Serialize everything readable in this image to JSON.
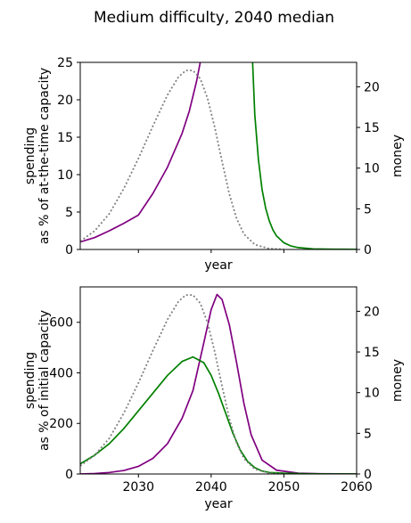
{
  "figure": {
    "suptitle": "Medium difficulty, 2040 median"
  },
  "colors": {
    "purple": "#800080",
    "green": "#008000",
    "dotted": "#808080",
    "axis": "#000000"
  },
  "chart_data": [
    {
      "type": "line",
      "panel": "top",
      "xlabel": "year",
      "ylabel_left": "spending\nas % of at-the-time capacity",
      "ylabel_right": "money",
      "xlim": [
        2022,
        2060
      ],
      "ylim_left": [
        0,
        25
      ],
      "ylim_right": [
        0,
        23
      ],
      "yticks_left": [
        0,
        5,
        10,
        15,
        20,
        25
      ],
      "yticks_right": [
        0,
        5,
        10,
        15,
        20
      ],
      "xticks": [
        2030,
        2040,
        2050,
        2060
      ],
      "xticklabels_shown": false,
      "series": [
        {
          "color": "purple",
          "style": "solid",
          "axis": "left",
          "x": [
            2022,
            2024,
            2026,
            2028,
            2030,
            2032,
            2034,
            2036,
            2037,
            2038,
            2038.5
          ],
          "y": [
            1.0,
            1.6,
            2.5,
            3.5,
            4.6,
            7.5,
            11.0,
            15.5,
            18.5,
            22.5,
            25
          ]
        },
        {
          "color": "green",
          "style": "solid",
          "axis": "left",
          "x": [
            2045.7,
            2046,
            2046.5,
            2047,
            2047.5,
            2048,
            2048.5,
            2049,
            2050,
            2051,
            2052,
            2054,
            2057,
            2060
          ],
          "y": [
            25,
            18,
            12,
            8,
            5.5,
            3.8,
            2.6,
            1.8,
            0.9,
            0.45,
            0.25,
            0.08,
            0.03,
            0.02
          ]
        },
        {
          "color": "dotted",
          "style": "dotted",
          "axis": "right",
          "x": [
            2022,
            2024,
            2026,
            2028,
            2030,
            2032,
            2034,
            2035.5,
            2036.5,
            2037.5,
            2038.5,
            2039.5,
            2040.5,
            2041.5,
            2042.5,
            2043.5,
            2044.5,
            2046,
            2048,
            2050
          ],
          "y": [
            1.0,
            2.3,
            4.4,
            7.5,
            11.2,
            15.2,
            19.0,
            21.2,
            22.0,
            22.0,
            21.0,
            18.6,
            15.0,
            10.8,
            6.8,
            3.8,
            1.9,
            0.6,
            0.1,
            0.0
          ]
        }
      ]
    },
    {
      "type": "line",
      "panel": "bottom",
      "xlabel": "year",
      "ylabel_left": "spending\nas % of initial capacity",
      "ylabel_right": "money",
      "xlim": [
        2022,
        2060
      ],
      "ylim_left": [
        0,
        740
      ],
      "ylim_right": [
        0,
        23
      ],
      "yticks_left": [
        0,
        200,
        400,
        600
      ],
      "yticks_right": [
        0,
        5,
        10,
        15,
        20
      ],
      "xticks": [
        2030,
        2040,
        2050,
        2060
      ],
      "xticklabels_shown": true,
      "series": [
        {
          "color": "purple",
          "style": "solid",
          "axis": "left",
          "x": [
            2022,
            2024,
            2026,
            2028,
            2030,
            2032,
            2034,
            2036,
            2037.5,
            2039,
            2040,
            2040.8,
            2041.5,
            2042.5,
            2043.5,
            2044.5,
            2045.5,
            2047,
            2049,
            2052,
            2055,
            2060
          ],
          "y": [
            0,
            2,
            6,
            14,
            30,
            62,
            120,
            220,
            330,
            520,
            650,
            710,
            690,
            590,
            440,
            280,
            155,
            55,
            15,
            3,
            1,
            0
          ]
        },
        {
          "color": "green",
          "style": "solid",
          "axis": "left",
          "x": [
            2022,
            2024,
            2026,
            2028,
            2030,
            2032,
            2034,
            2036,
            2037.5,
            2039,
            2040,
            2041,
            2042,
            2043,
            2044,
            2045,
            2046,
            2047,
            2048,
            2050,
            2053,
            2056,
            2060
          ],
          "y": [
            40,
            75,
            120,
            180,
            250,
            320,
            390,
            445,
            463,
            440,
            390,
            320,
            240,
            160,
            95,
            50,
            25,
            12,
            6,
            3,
            1,
            0,
            0
          ]
        },
        {
          "color": "dotted",
          "style": "dotted",
          "axis": "right",
          "x": [
            2022,
            2024,
            2026,
            2028,
            2030,
            2032,
            2034,
            2035.5,
            2036.5,
            2037.5,
            2038.5,
            2039.5,
            2040.5,
            2041.5,
            2042.5,
            2043.5,
            2044.5,
            2046,
            2048,
            2050
          ],
          "y": [
            1.0,
            2.3,
            4.4,
            7.5,
            11.2,
            15.2,
            19.0,
            21.2,
            22.0,
            22.0,
            21.0,
            18.6,
            15.0,
            10.8,
            6.8,
            3.8,
            1.9,
            0.6,
            0.1,
            0.0
          ]
        }
      ]
    }
  ]
}
